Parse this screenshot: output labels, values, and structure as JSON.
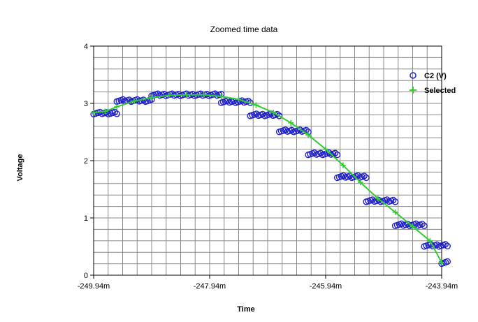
{
  "chart_data": {
    "type": "scatter",
    "title": "Zoomed time data",
    "xlabel": "Time",
    "ylabel": "Voltage",
    "xlim": [
      -249.94,
      -243.94
    ],
    "ylim": [
      0,
      4
    ],
    "x_unit_suffix": "m",
    "x_ticks": [
      "-249.94m",
      "-247.94m",
      "-245.94m",
      "-243.94m"
    ],
    "y_ticks": [
      "0",
      "1",
      "2",
      "3",
      "4"
    ],
    "grid": true,
    "legend_position": "top-right",
    "series": [
      {
        "name": "C2 (V)",
        "marker": "circle",
        "color": "#2222cc",
        "steps": [
          [
            -249.94,
            -249.54,
            2.83
          ],
          [
            -249.54,
            -248.94,
            3.05
          ],
          [
            -248.94,
            -247.74,
            3.15
          ],
          [
            -247.74,
            -247.24,
            3.03
          ],
          [
            -247.24,
            -246.74,
            2.8
          ],
          [
            -246.74,
            -246.24,
            2.52
          ],
          [
            -246.24,
            -245.74,
            2.12
          ],
          [
            -245.74,
            -245.24,
            1.72
          ],
          [
            -245.24,
            -244.74,
            1.3
          ],
          [
            -244.74,
            -244.24,
            0.88
          ],
          [
            -244.24,
            -243.84,
            0.52
          ],
          [
            -243.84,
            -243.94,
            0.22
          ]
        ]
      },
      {
        "name": "Selected",
        "marker": "plus",
        "color": "#33cc33",
        "points": [
          [
            -249.94,
            2.84
          ],
          [
            -249.74,
            2.86
          ],
          [
            -249.54,
            2.94
          ],
          [
            -249.24,
            3.04
          ],
          [
            -248.94,
            3.1
          ],
          [
            -248.64,
            3.14
          ],
          [
            -248.34,
            3.15
          ],
          [
            -248.04,
            3.15
          ],
          [
            -247.74,
            3.12
          ],
          [
            -247.44,
            3.07
          ],
          [
            -247.14,
            2.97
          ],
          [
            -246.84,
            2.84
          ],
          [
            -246.54,
            2.66
          ],
          [
            -246.24,
            2.45
          ],
          [
            -245.94,
            2.2
          ],
          [
            -245.64,
            1.92
          ],
          [
            -245.34,
            1.62
          ],
          [
            -245.04,
            1.34
          ],
          [
            -244.74,
            1.1
          ],
          [
            -244.44,
            0.85
          ],
          [
            -244.14,
            0.6
          ],
          [
            -243.94,
            0.22
          ]
        ]
      }
    ]
  }
}
